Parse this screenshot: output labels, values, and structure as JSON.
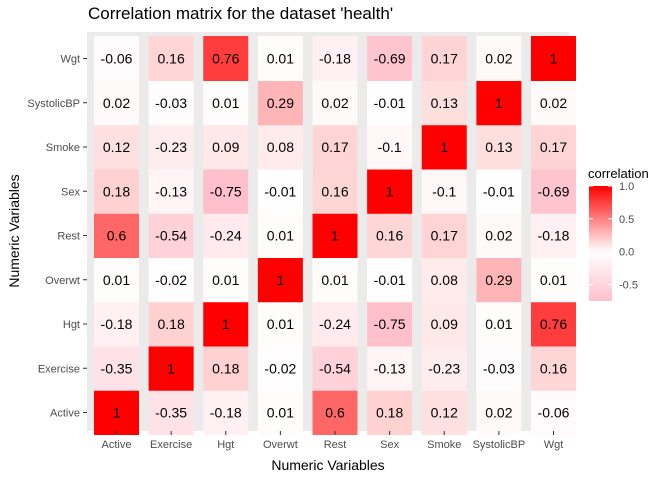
{
  "chart_data": {
    "type": "heatmap",
    "title": "Correlation matrix for the dataset 'health'",
    "xlabel": "Numeric Variables",
    "ylabel": "Numeric Variables",
    "x_categories": [
      "Active",
      "Exercise",
      "Hgt",
      "Overwt",
      "Rest",
      "Sex",
      "Smoke",
      "SystolicBP",
      "Wgt"
    ],
    "y_categories": [
      "Active",
      "Exercise",
      "Hgt",
      "Overwt",
      "Rest",
      "Sex",
      "Smoke",
      "SystolicBP",
      "Wgt"
    ],
    "values": [
      [
        1,
        -0.35,
        -0.18,
        0.01,
        0.6,
        0.18,
        0.12,
        0.02,
        -0.06
      ],
      [
        -0.35,
        1,
        0.18,
        -0.02,
        -0.54,
        -0.13,
        -0.23,
        -0.03,
        0.16
      ],
      [
        -0.18,
        0.18,
        1,
        0.01,
        -0.24,
        -0.75,
        0.09,
        0.01,
        0.76
      ],
      [
        0.01,
        -0.02,
        0.01,
        1,
        0.01,
        -0.01,
        0.08,
        0.29,
        0.01
      ],
      [
        0.6,
        -0.54,
        -0.24,
        0.01,
        1,
        0.16,
        0.17,
        0.02,
        -0.18
      ],
      [
        0.18,
        -0.13,
        -0.75,
        -0.01,
        0.16,
        1,
        -0.1,
        -0.01,
        -0.69
      ],
      [
        0.12,
        -0.23,
        0.09,
        0.08,
        0.17,
        -0.1,
        1,
        0.13,
        0.17
      ],
      [
        0.02,
        -0.03,
        0.01,
        0.29,
        0.02,
        -0.01,
        0.13,
        1,
        0.02
      ],
      [
        -0.06,
        0.16,
        0.76,
        0.01,
        -0.18,
        -0.69,
        0.17,
        0.02,
        1
      ]
    ],
    "legend": {
      "title": "correlation",
      "ticks": [
        "1.0",
        "0.5",
        "0.0",
        "-0.5"
      ],
      "tick_values": [
        1.0,
        0.5,
        0.0,
        -0.5
      ],
      "range": [
        -0.75,
        1.0
      ],
      "placement": "right"
    },
    "colors": {
      "low": "#ffc0cb",
      "mid": "#ffffff",
      "high": "#ff0000",
      "panel_background": "#ebebeb"
    },
    "grid": true
  }
}
